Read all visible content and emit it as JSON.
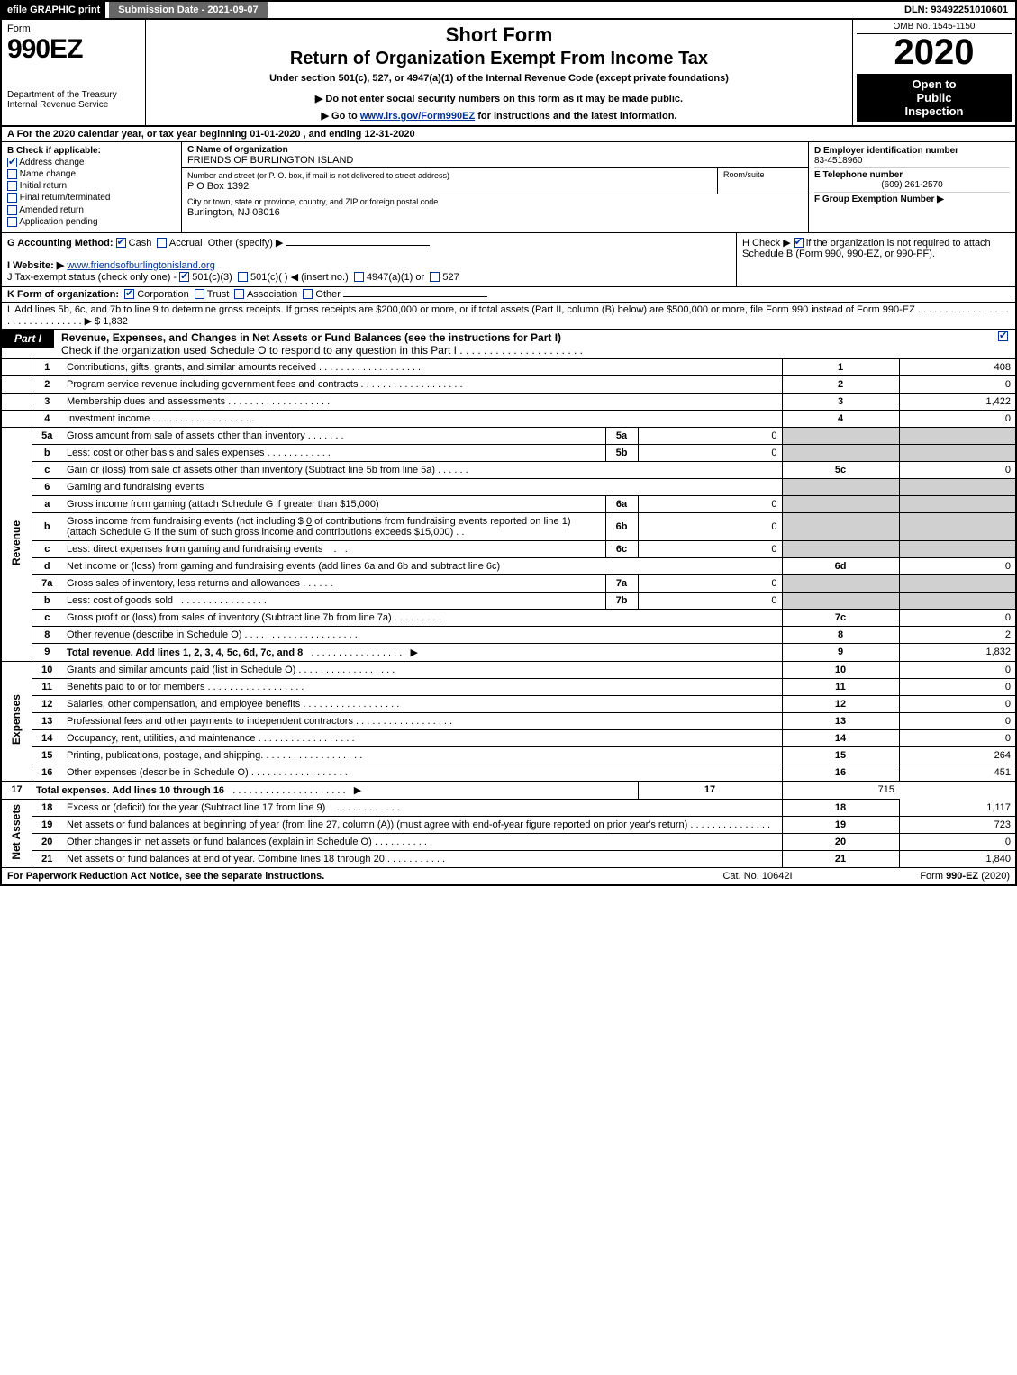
{
  "colors": {
    "black": "#000000",
    "white": "#ffffff",
    "grey_cell": "#d0d0d0",
    "dark_grey": "#666666",
    "link_blue": "#003399"
  },
  "fontsizes": {
    "body": 11,
    "small": 10,
    "tiny": 9,
    "title": 22,
    "year": 40,
    "formnum": 30
  },
  "top": {
    "efile_label": "efile GRAPHIC print",
    "submission_label": "Submission Date - 2021-09-07",
    "dln_label": "DLN: 93492251010601"
  },
  "header": {
    "form_word": "Form",
    "form_number": "990EZ",
    "dept": "Department of the Treasury",
    "irs": "Internal Revenue Service",
    "title1": "Short Form",
    "title2": "Return of Organization Exempt From Income Tax",
    "subtitle1": "Under section 501(c), 527, or 4947(a)(1) of the Internal Revenue Code (except private foundations)",
    "subtitle2": "▶ Do not enter social security numbers on this form as it may be made public.",
    "subtitle3_pre": "▶ Go to ",
    "subtitle3_link": "www.irs.gov/Form990EZ",
    "subtitle3_post": " for instructions and the latest information.",
    "omb": "OMB No. 1545-1150",
    "year": "2020",
    "open1": "Open to",
    "open2": "Public",
    "open3": "Inspection"
  },
  "lineA": "A For the 2020 calendar year, or tax year beginning 01-01-2020 , and ending 12-31-2020",
  "sectionB": {
    "label": "B Check if applicable:",
    "items": [
      {
        "label": "Address change",
        "checked": true
      },
      {
        "label": "Name change",
        "checked": false
      },
      {
        "label": "Initial return",
        "checked": false
      },
      {
        "label": "Final return/terminated",
        "checked": false
      },
      {
        "label": "Amended return",
        "checked": false
      },
      {
        "label": "Application pending",
        "checked": false
      }
    ]
  },
  "sectionC": {
    "label": "C Name of organization",
    "org_name": "FRIENDS OF BURLINGTON ISLAND",
    "addr_label": "Number and street (or P. O. box, if mail is not delivered to street address)",
    "addr": "P O Box 1392",
    "room_label": "Room/suite",
    "city_label": "City or town, state or province, country, and ZIP or foreign postal code",
    "city": "Burlington, NJ  08016"
  },
  "sectionD": {
    "d_label": "D Employer identification number",
    "ein": "83-4518960",
    "e_label": "E Telephone number",
    "phone": "(609) 261-2570",
    "f_label": "F Group Exemption Number  ▶",
    "f_val": ""
  },
  "lineG": {
    "label": "G Accounting Method:",
    "cash": "Cash",
    "accrual": "Accrual",
    "other": "Other (specify) ▶",
    "cash_checked": true,
    "accrual_checked": false
  },
  "lineH": {
    "text1": "H  Check ▶",
    "text2": "if the organization is not required to attach Schedule B (Form 990, 990-EZ, or 990-PF).",
    "checked": true
  },
  "lineI": {
    "label": "I Website: ▶",
    "url": "www.friendsofburlingtonisland.org"
  },
  "lineJ": {
    "text": "J Tax-exempt status (check only one) - ",
    "opt1": "501(c)(3)",
    "opt2": "501(c)(  ) ◀ (insert no.)",
    "opt3": "4947(a)(1) or",
    "opt4": "527",
    "opt1_checked": true
  },
  "lineK": {
    "label": "K Form of organization:",
    "corp": "Corporation",
    "trust": "Trust",
    "assoc": "Association",
    "other": "Other",
    "corp_checked": true
  },
  "lineL": {
    "text": "L Add lines 5b, 6c, and 7b to line 9 to determine gross receipts. If gross receipts are $200,000 or more, or if total assets (Part II, column (B) below) are $500,000 or more, file Form 990 instead of Form 990-EZ",
    "arrow": "▶",
    "value": "$ 1,832"
  },
  "part1": {
    "tab": "Part I",
    "title": "Revenue, Expenses, and Changes in Net Assets or Fund Balances (see the instructions for Part I)",
    "check_text": "Check if the organization used Schedule O to respond to any question in this Part I",
    "checked": true
  },
  "sidebars": {
    "revenue": "Revenue",
    "expenses": "Expenses",
    "netassets": "Net Assets"
  },
  "rows": [
    {
      "n": "1",
      "desc": "Contributions, gifts, grants, and similar amounts received",
      "main_n": "1",
      "main_v": "408"
    },
    {
      "n": "2",
      "desc": "Program service revenue including government fees and contracts",
      "main_n": "2",
      "main_v": "0"
    },
    {
      "n": "3",
      "desc": "Membership dues and assessments",
      "main_n": "3",
      "main_v": "1,422"
    },
    {
      "n": "4",
      "desc": "Investment income",
      "main_n": "4",
      "main_v": "0"
    }
  ],
  "row5a": {
    "n": "5a",
    "desc": "Gross amount from sale of assets other than inventory",
    "sub_n": "5a",
    "sub_v": "0"
  },
  "row5b": {
    "n": "b",
    "desc": "Less: cost or other basis and sales expenses",
    "sub_n": "5b",
    "sub_v": "0"
  },
  "row5c": {
    "n": "c",
    "desc": "Gain or (loss) from sale of assets other than inventory (Subtract line 5b from line 5a)",
    "main_n": "5c",
    "main_v": "0"
  },
  "row6": {
    "n": "6",
    "desc": "Gaming and fundraising events"
  },
  "row6a": {
    "n": "a",
    "desc": "Gross income from gaming (attach Schedule G if greater than $15,000)",
    "sub_n": "6a",
    "sub_v": "0"
  },
  "row6b": {
    "n": "b",
    "desc_pre": "Gross income from fundraising events (not including $",
    "desc_val": "0",
    "desc_mid": " of contributions from fundraising events reported on line 1) (attach Schedule G if the sum of such gross income and contributions exceeds $15,000)",
    "sub_n": "6b",
    "sub_v": "0"
  },
  "row6c": {
    "n": "c",
    "desc": "Less: direct expenses from gaming and fundraising events",
    "sub_n": "6c",
    "sub_v": "0"
  },
  "row6d": {
    "n": "d",
    "desc": "Net income or (loss) from gaming and fundraising events (add lines 6a and 6b and subtract line 6c)",
    "main_n": "6d",
    "main_v": "0"
  },
  "row7a": {
    "n": "7a",
    "desc": "Gross sales of inventory, less returns and allowances",
    "sub_n": "7a",
    "sub_v": "0"
  },
  "row7b": {
    "n": "b",
    "desc": "Less: cost of goods sold",
    "sub_n": "7b",
    "sub_v": "0"
  },
  "row7c": {
    "n": "c",
    "desc": "Gross profit or (loss) from sales of inventory (Subtract line 7b from line 7a)",
    "main_n": "7c",
    "main_v": "0"
  },
  "row8": {
    "n": "8",
    "desc": "Other revenue (describe in Schedule O)",
    "main_n": "8",
    "main_v": "2"
  },
  "row9": {
    "n": "9",
    "desc": "Total revenue. Add lines 1, 2, 3, 4, 5c, 6d, 7c, and 8",
    "arrow": "▶",
    "main_n": "9",
    "main_v": "1,832",
    "bold": true
  },
  "exp_rows": [
    {
      "n": "10",
      "desc": "Grants and similar amounts paid (list in Schedule O)",
      "main_n": "10",
      "main_v": "0"
    },
    {
      "n": "11",
      "desc": "Benefits paid to or for members",
      "main_n": "11",
      "main_v": "0"
    },
    {
      "n": "12",
      "desc": "Salaries, other compensation, and employee benefits",
      "main_n": "12",
      "main_v": "0"
    },
    {
      "n": "13",
      "desc": "Professional fees and other payments to independent contractors",
      "main_n": "13",
      "main_v": "0"
    },
    {
      "n": "14",
      "desc": "Occupancy, rent, utilities, and maintenance",
      "main_n": "14",
      "main_v": "0"
    },
    {
      "n": "15",
      "desc": "Printing, publications, postage, and shipping.",
      "main_n": "15",
      "main_v": "264"
    },
    {
      "n": "16",
      "desc": "Other expenses (describe in Schedule O)",
      "main_n": "16",
      "main_v": "451"
    }
  ],
  "row17": {
    "n": "17",
    "desc": "Total expenses. Add lines 10 through 16",
    "arrow": "▶",
    "main_n": "17",
    "main_v": "715",
    "bold": true
  },
  "na_rows": [
    {
      "n": "18",
      "desc": "Excess or (deficit) for the year (Subtract line 17 from line 9)",
      "main_n": "18",
      "main_v": "1,117"
    }
  ],
  "row19": {
    "n": "19",
    "desc": "Net assets or fund balances at beginning of year (from line 27, column (A)) (must agree with end-of-year figure reported on prior year's return)",
    "main_n": "19",
    "main_v": "723"
  },
  "row20": {
    "n": "20",
    "desc": "Other changes in net assets or fund balances (explain in Schedule O)",
    "main_n": "20",
    "main_v": "0"
  },
  "row21": {
    "n": "21",
    "desc": "Net assets or fund balances at end of year. Combine lines 18 through 20",
    "main_n": "21",
    "main_v": "1,840"
  },
  "footer": {
    "left": "For Paperwork Reduction Act Notice, see the separate instructions.",
    "center": "Cat. No. 10642I",
    "right_pre": "Form ",
    "right_bold": "990-EZ",
    "right_post": " (2020)"
  }
}
